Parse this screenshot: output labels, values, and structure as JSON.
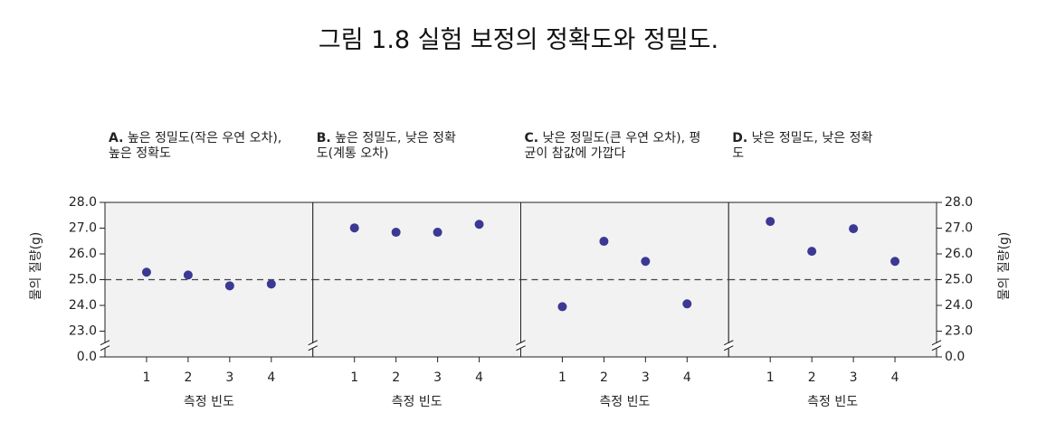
{
  "title": "그림 1.8  실험 보정의 정확도와 정밀도.",
  "chart_data": [
    {
      "type": "scatter",
      "panel_label": "A.",
      "title": "높은 정밀도(작은 우연 오차), 높은 정확도",
      "xlabel": "측정 빈도",
      "ylabel": "물의 질량(g)",
      "y_axis_side": "left",
      "x": [
        1,
        2,
        3,
        4
      ],
      "values": [
        25.29,
        25.18,
        24.76,
        24.83
      ],
      "color": "#3b3994",
      "xlim": [
        0,
        5
      ],
      "xticks": [
        1,
        2,
        3,
        4
      ],
      "ylim": [
        0,
        28
      ],
      "axis_break": [
        0,
        22
      ],
      "yticks": [
        {
          "value": 0,
          "label": "0.0"
        },
        {
          "value": 23,
          "label": "23.0"
        },
        {
          "value": 24,
          "label": "24.0"
        },
        {
          "value": 25,
          "label": "25.0"
        },
        {
          "value": 26,
          "label": "26.0"
        },
        {
          "value": 27,
          "label": "27.0"
        },
        {
          "value": 28,
          "label": "28.0"
        }
      ],
      "reference_line": 25
    },
    {
      "type": "scatter",
      "panel_label": "B.",
      "title": "높은 정밀도, 낮은 정확도(계통 오차)",
      "xlabel": "측정 빈도",
      "x": [
        1,
        2,
        3,
        4
      ],
      "values": [
        27.01,
        26.84,
        26.84,
        27.15
      ],
      "color": "#3b3994",
      "xlim": [
        0,
        5
      ],
      "xticks": [
        1,
        2,
        3,
        4
      ],
      "ylim": [
        0,
        28
      ],
      "axis_break": [
        0,
        22
      ],
      "reference_line": 25
    },
    {
      "type": "scatter",
      "panel_label": "C.",
      "title": "낮은 정밀도(큰 우연 오차), 평균이 참값에 가깝다",
      "xlabel": "측정 빈도",
      "x": [
        1,
        2,
        3,
        4
      ],
      "values": [
        23.95,
        26.49,
        25.71,
        24.06
      ],
      "color": "#3b3994",
      "xlim": [
        0,
        5
      ],
      "xticks": [
        1,
        2,
        3,
        4
      ],
      "ylim": [
        0,
        28
      ],
      "axis_break": [
        0,
        22
      ],
      "reference_line": 25
    },
    {
      "type": "scatter",
      "panel_label": "D.",
      "title": "낮은 정밀도, 낮은 정확도",
      "xlabel": "측정 빈도",
      "ylabel": "물의 질량(g)",
      "y_axis_side": "right",
      "x": [
        1,
        2,
        3,
        4
      ],
      "values": [
        27.26,
        26.1,
        26.98,
        25.71
      ],
      "color": "#3b3994",
      "xlim": [
        0,
        5
      ],
      "xticks": [
        1,
        2,
        3,
        4
      ],
      "ylim": [
        0,
        28
      ],
      "axis_break": [
        0,
        22
      ],
      "yticks": [
        {
          "value": 0,
          "label": "0.0"
        },
        {
          "value": 23,
          "label": "23.0"
        },
        {
          "value": 24,
          "label": "24.0"
        },
        {
          "value": 25,
          "label": "25.0"
        },
        {
          "value": 26,
          "label": "26.0"
        },
        {
          "value": 27,
          "label": "27.0"
        },
        {
          "value": 28,
          "label": "28.0"
        }
      ],
      "reference_line": 25
    }
  ]
}
